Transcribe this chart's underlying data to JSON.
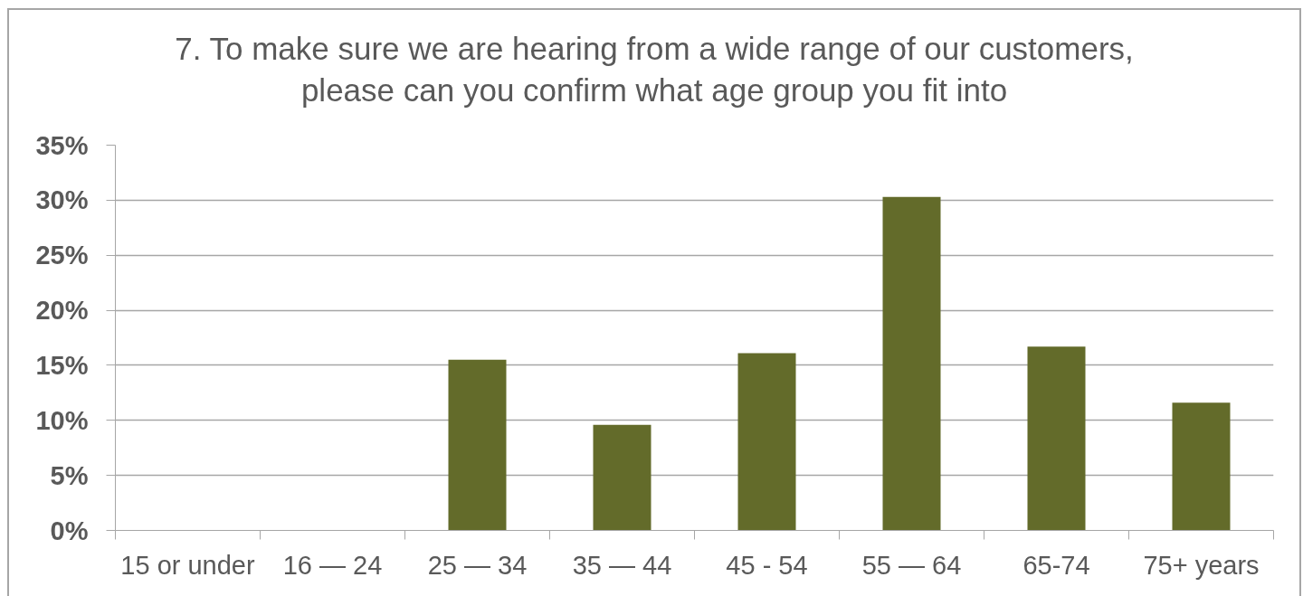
{
  "chart_data": {
    "type": "bar",
    "title": "7. To make sure we are hearing from a wide range of our customers,\nplease can you confirm what age group you fit into",
    "categories": [
      "15 or under",
      "16 — 24",
      "25 — 34",
      "35 — 44",
      "45 - 54",
      "55 — 64",
      "65-74",
      "75+ years"
    ],
    "values": [
      0,
      0,
      15.5,
      9.6,
      16.1,
      30.3,
      16.7,
      11.6
    ],
    "color": "#636b2a",
    "ylim": [
      0,
      35
    ],
    "yticks": [
      {
        "value": 0,
        "label": "0%"
      },
      {
        "value": 5,
        "label": "5%"
      },
      {
        "value": 10,
        "label": "10%"
      },
      {
        "value": 15,
        "label": "15%"
      },
      {
        "value": 20,
        "label": "20%"
      },
      {
        "value": 25,
        "label": "25%"
      },
      {
        "value": 30,
        "label": "30%"
      },
      {
        "value": 35,
        "label": "35%"
      }
    ],
    "grid": "y"
  }
}
